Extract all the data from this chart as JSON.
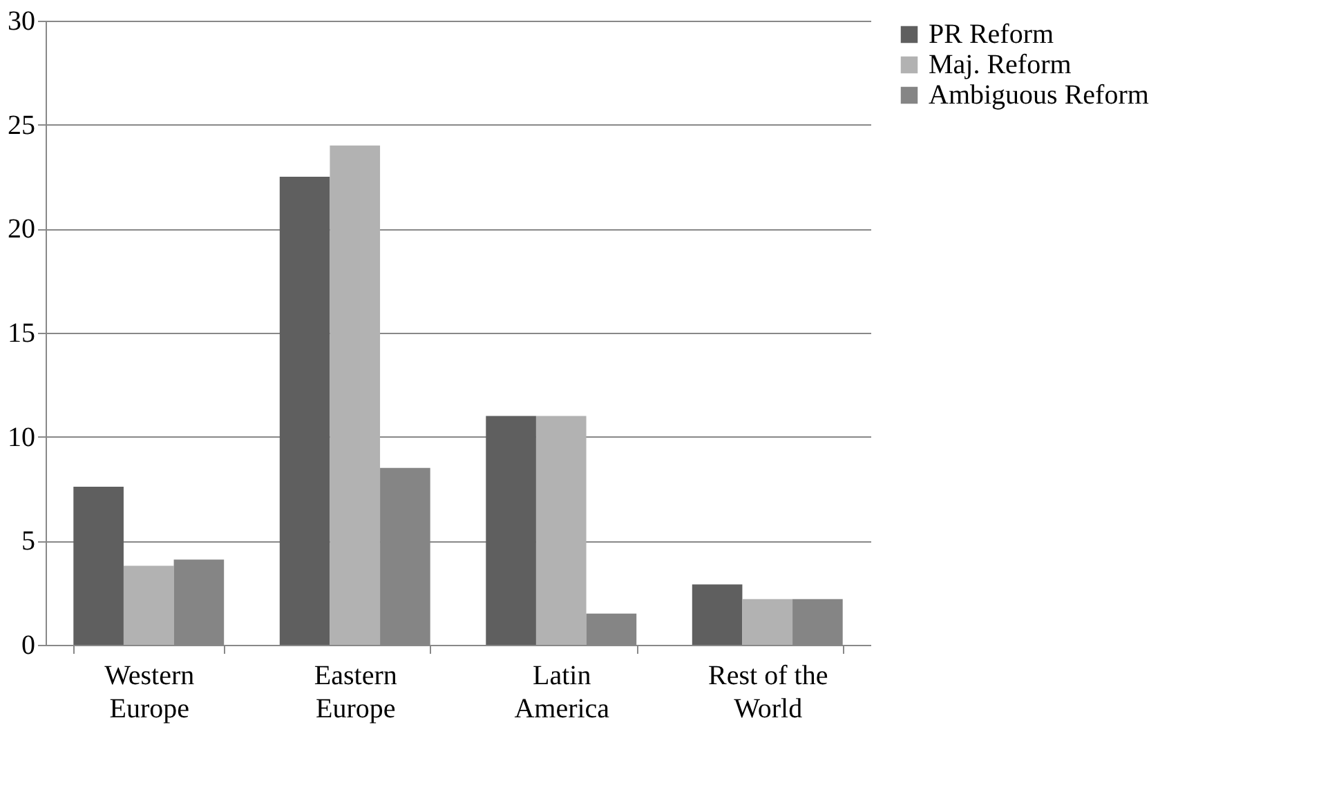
{
  "chart_data": {
    "type": "bar",
    "categories": [
      "Western Europe",
      "Eastern Europe",
      "Latin America",
      "Rest of the World"
    ],
    "series": [
      {
        "name": "PR Reform",
        "color": "#5f5f5f",
        "values": [
          7.6,
          22.5,
          11.0,
          2.9
        ]
      },
      {
        "name": "Maj. Reform",
        "color": "#b2b2b2",
        "values": [
          3.8,
          24.0,
          11.0,
          2.2
        ]
      },
      {
        "name": "Ambiguous Reform",
        "color": "#858585",
        "values": [
          4.1,
          8.5,
          1.5,
          2.2
        ]
      }
    ],
    "ylim": [
      0,
      30
    ],
    "yticks": [
      0,
      5,
      10,
      15,
      20,
      25,
      30
    ],
    "grid": "y",
    "legend": "right"
  }
}
